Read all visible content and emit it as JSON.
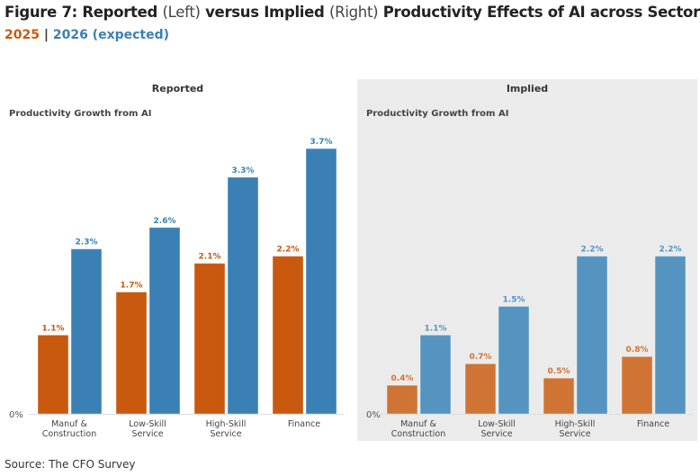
{
  "title": {
    "part1": "Figure 7: Reported",
    "part2": "(Left)",
    "part3": "versus Implied",
    "part4": "(Right)",
    "part5": "Productivity Effects of AI across Sectors"
  },
  "legend": {
    "s2025": "2025",
    "sep": "|",
    "s2026": "2026 (expected)"
  },
  "source": "Source: The CFO Survey",
  "colors": {
    "orange": "#c8590f",
    "blue": "#3a80b4",
    "orange_light": "#d07436",
    "blue_light": "#5594c1",
    "implied_bg": "#ebebeb"
  },
  "chart_data": [
    {
      "type": "bar",
      "panel_title": "Reported",
      "ylabel": "Productivity Growth from AI",
      "ytick": "0%",
      "categories": [
        "Manuf & Construction",
        "Low-Skill Service",
        "High-Skill Service",
        "Finance"
      ],
      "series": [
        {
          "name": "2025",
          "values": [
            1.1,
            1.7,
            2.1,
            2.2
          ],
          "labels": [
            "1.1%",
            "1.7%",
            "2.1%",
            "2.2%"
          ]
        },
        {
          "name": "2026 (expected)",
          "values": [
            2.3,
            2.6,
            3.3,
            3.7
          ],
          "labels": [
            "2.3%",
            "2.6%",
            "3.3%",
            "3.7%"
          ]
        }
      ]
    },
    {
      "type": "bar",
      "panel_title": "Implied",
      "ylabel": "Productivity Growth from AI",
      "ytick": "0%",
      "categories": [
        "Manuf & Construction",
        "Low-Skill Service",
        "High-Skill Service",
        "Finance"
      ],
      "series": [
        {
          "name": "2025",
          "values": [
            0.4,
            0.7,
            0.5,
            0.8
          ],
          "labels": [
            "0.4%",
            "0.7%",
            "0.5%",
            "0.8%"
          ]
        },
        {
          "name": "2026 (expected)",
          "values": [
            1.1,
            1.5,
            2.2,
            2.2
          ],
          "labels": [
            "1.1%",
            "1.5%",
            "2.2%",
            "2.2%"
          ]
        }
      ]
    }
  ]
}
